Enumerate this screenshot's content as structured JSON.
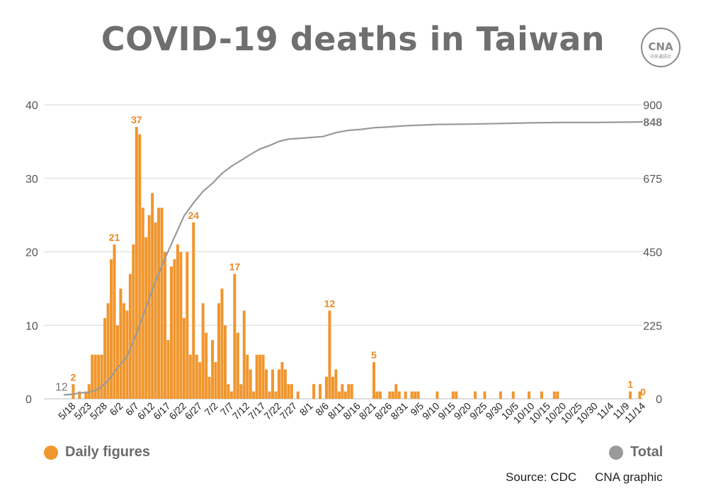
{
  "title": "COVID-19 deaths in Taiwan",
  "logo_text": "CNA",
  "logo_subtext": "中央通訊社",
  "legend": {
    "daily": "Daily figures",
    "total": "Total"
  },
  "source": "Source: CDC",
  "credit": "CNA graphic",
  "colors": {
    "daily": "#f0962e",
    "total": "#9a9a9a",
    "annotation": "#e8892a",
    "grid": "#d9d9d9",
    "axis_text": "#555555"
  },
  "chart_data": {
    "type": "bar+line",
    "left_axis": {
      "ticks": [
        0,
        10,
        20,
        30,
        40
      ],
      "ylim": [
        0,
        40
      ]
    },
    "right_axis": {
      "ticks": [
        0,
        225,
        450,
        675,
        900
      ],
      "ylim": [
        0,
        900
      ]
    },
    "x_tick_labels": [
      "5/18",
      "5/23",
      "5/28",
      "6/2",
      "6/7",
      "6/12",
      "6/17",
      "6/22",
      "6/27",
      "7/2",
      "7/7",
      "7/12",
      "7/17",
      "7/22",
      "7/27",
      "8/1",
      "8/6",
      "8/11",
      "8/16",
      "8/21",
      "8/26",
      "8/31",
      "9/5",
      "9/10",
      "9/15",
      "9/20",
      "9/25",
      "9/30",
      "10/5",
      "10/10",
      "10/15",
      "10/20",
      "10/25",
      "10/30",
      "11/4",
      "11/9",
      "11/14"
    ],
    "x_start": "5/15",
    "x_end": "11/14",
    "series": [
      {
        "name": "Daily figures",
        "kind": "bar",
        "axis": "left",
        "points": [
          [
            "5/15",
            0
          ],
          [
            "5/16",
            0
          ],
          [
            "5/17",
            0
          ],
          [
            "5/18",
            2
          ],
          [
            "5/19",
            0
          ],
          [
            "5/20",
            1
          ],
          [
            "5/21",
            0
          ],
          [
            "5/22",
            1
          ],
          [
            "5/23",
            2
          ],
          [
            "5/24",
            6
          ],
          [
            "5/25",
            6
          ],
          [
            "5/26",
            6
          ],
          [
            "5/27",
            6
          ],
          [
            "5/28",
            11
          ],
          [
            "5/29",
            13
          ],
          [
            "5/30",
            19
          ],
          [
            "5/31",
            21
          ],
          [
            "6/1",
            10
          ],
          [
            "6/2",
            15
          ],
          [
            "6/3",
            13
          ],
          [
            "6/4",
            12
          ],
          [
            "6/5",
            17
          ],
          [
            "6/6",
            21
          ],
          [
            "6/7",
            37
          ],
          [
            "6/8",
            36
          ],
          [
            "6/9",
            26
          ],
          [
            "6/10",
            22
          ],
          [
            "6/11",
            25
          ],
          [
            "6/12",
            28
          ],
          [
            "6/13",
            24
          ],
          [
            "6/14",
            26
          ],
          [
            "6/15",
            26
          ],
          [
            "6/16",
            20
          ],
          [
            "6/17",
            8
          ],
          [
            "6/18",
            18
          ],
          [
            "6/19",
            19
          ],
          [
            "6/20",
            21
          ],
          [
            "6/21",
            20
          ],
          [
            "6/22",
            11
          ],
          [
            "6/23",
            20
          ],
          [
            "6/24",
            6
          ],
          [
            "6/25",
            24
          ],
          [
            "6/26",
            6
          ],
          [
            "6/27",
            5
          ],
          [
            "6/28",
            13
          ],
          [
            "6/29",
            9
          ],
          [
            "6/30",
            3
          ],
          [
            "7/1",
            8
          ],
          [
            "7/2",
            5
          ],
          [
            "7/3",
            13
          ],
          [
            "7/4",
            15
          ],
          [
            "7/5",
            10
          ],
          [
            "7/6",
            2
          ],
          [
            "7/7",
            1
          ],
          [
            "7/8",
            17
          ],
          [
            "7/9",
            9
          ],
          [
            "7/10",
            2
          ],
          [
            "7/11",
            12
          ],
          [
            "7/12",
            6
          ],
          [
            "7/13",
            4
          ],
          [
            "7/14",
            1
          ],
          [
            "7/15",
            6
          ],
          [
            "7/16",
            6
          ],
          [
            "7/17",
            6
          ],
          [
            "7/18",
            4
          ],
          [
            "7/19",
            1
          ],
          [
            "7/20",
            4
          ],
          [
            "7/21",
            1
          ],
          [
            "7/22",
            4
          ],
          [
            "7/23",
            5
          ],
          [
            "7/24",
            4
          ],
          [
            "7/25",
            2
          ],
          [
            "7/26",
            2
          ],
          [
            "7/27",
            0
          ],
          [
            "7/28",
            1
          ],
          [
            "7/29",
            0
          ],
          [
            "7/30",
            0
          ],
          [
            "7/31",
            0
          ],
          [
            "8/1",
            0
          ],
          [
            "8/2",
            2
          ],
          [
            "8/3",
            0
          ],
          [
            "8/4",
            2
          ],
          [
            "8/5",
            0
          ],
          [
            "8/6",
            3
          ],
          [
            "8/7",
            12
          ],
          [
            "8/8",
            3
          ],
          [
            "8/9",
            4
          ],
          [
            "8/10",
            1
          ],
          [
            "8/11",
            2
          ],
          [
            "8/12",
            1
          ],
          [
            "8/13",
            2
          ],
          [
            "8/14",
            2
          ],
          [
            "8/15",
            0
          ],
          [
            "8/16",
            0
          ],
          [
            "8/17",
            0
          ],
          [
            "8/18",
            0
          ],
          [
            "8/19",
            0
          ],
          [
            "8/20",
            0
          ],
          [
            "8/21",
            5
          ],
          [
            "8/22",
            1
          ],
          [
            "8/23",
            1
          ],
          [
            "8/24",
            0
          ],
          [
            "8/25",
            0
          ],
          [
            "8/26",
            1
          ],
          [
            "8/27",
            1
          ],
          [
            "8/28",
            2
          ],
          [
            "8/29",
            1
          ],
          [
            "8/30",
            0
          ],
          [
            "8/31",
            1
          ],
          [
            "9/1",
            0
          ],
          [
            "9/2",
            1
          ],
          [
            "9/3",
            1
          ],
          [
            "9/4",
            1
          ],
          [
            "9/5",
            0
          ],
          [
            "9/6",
            0
          ],
          [
            "9/7",
            0
          ],
          [
            "9/8",
            0
          ],
          [
            "9/9",
            0
          ],
          [
            "9/10",
            1
          ],
          [
            "9/11",
            0
          ],
          [
            "9/12",
            0
          ],
          [
            "9/13",
            0
          ],
          [
            "9/14",
            0
          ],
          [
            "9/15",
            1
          ],
          [
            "9/16",
            1
          ],
          [
            "9/17",
            0
          ],
          [
            "9/18",
            0
          ],
          [
            "9/19",
            0
          ],
          [
            "9/20",
            0
          ],
          [
            "9/21",
            0
          ],
          [
            "9/22",
            1
          ],
          [
            "9/23",
            0
          ],
          [
            "9/24",
            0
          ],
          [
            "9/25",
            1
          ],
          [
            "9/26",
            0
          ],
          [
            "9/27",
            0
          ],
          [
            "9/28",
            0
          ],
          [
            "9/29",
            0
          ],
          [
            "9/30",
            1
          ],
          [
            "10/1",
            0
          ],
          [
            "10/2",
            0
          ],
          [
            "10/3",
            0
          ],
          [
            "10/4",
            1
          ],
          [
            "10/5",
            0
          ],
          [
            "10/6",
            0
          ],
          [
            "10/7",
            0
          ],
          [
            "10/8",
            0
          ],
          [
            "10/9",
            1
          ],
          [
            "10/10",
            0
          ],
          [
            "10/11",
            0
          ],
          [
            "10/12",
            0
          ],
          [
            "10/13",
            1
          ],
          [
            "10/14",
            0
          ],
          [
            "10/15",
            0
          ],
          [
            "10/16",
            0
          ],
          [
            "10/17",
            1
          ],
          [
            "10/18",
            1
          ],
          [
            "10/19",
            0
          ],
          [
            "10/20",
            0
          ],
          [
            "10/21",
            0
          ],
          [
            "10/22",
            0
          ],
          [
            "10/23",
            0
          ],
          [
            "10/24",
            0
          ],
          [
            "10/25",
            0
          ],
          [
            "10/26",
            0
          ],
          [
            "10/27",
            0
          ],
          [
            "10/28",
            0
          ],
          [
            "10/29",
            0
          ],
          [
            "10/30",
            0
          ],
          [
            "10/31",
            0
          ],
          [
            "11/1",
            0
          ],
          [
            "11/2",
            0
          ],
          [
            "11/3",
            0
          ],
          [
            "11/4",
            0
          ],
          [
            "11/5",
            0
          ],
          [
            "11/6",
            0
          ],
          [
            "11/7",
            0
          ],
          [
            "11/8",
            0
          ],
          [
            "11/9",
            0
          ],
          [
            "11/10",
            1
          ],
          [
            "11/11",
            0
          ],
          [
            "11/12",
            0
          ],
          [
            "11/13",
            1
          ],
          [
            "11/14",
            0
          ]
        ]
      },
      {
        "name": "Total",
        "kind": "line",
        "axis": "right",
        "points": [
          [
            "5/15",
            12
          ],
          [
            "5/18",
            14
          ],
          [
            "5/20",
            18
          ],
          [
            "5/23",
            20
          ],
          [
            "5/26",
            30
          ],
          [
            "5/29",
            55
          ],
          [
            "6/1",
            95
          ],
          [
            "6/4",
            130
          ],
          [
            "6/7",
            200
          ],
          [
            "6/10",
            280
          ],
          [
            "6/13",
            360
          ],
          [
            "6/16",
            430
          ],
          [
            "6/19",
            495
          ],
          [
            "6/22",
            560
          ],
          [
            "6/25",
            600
          ],
          [
            "6/28",
            635
          ],
          [
            "7/1",
            660
          ],
          [
            "7/4",
            690
          ],
          [
            "7/7",
            712
          ],
          [
            "7/10",
            730
          ],
          [
            "7/13",
            748
          ],
          [
            "7/16",
            765
          ],
          [
            "7/19",
            775
          ],
          [
            "7/22",
            788
          ],
          [
            "7/25",
            795
          ],
          [
            "7/28",
            797
          ],
          [
            "8/1",
            800
          ],
          [
            "8/5",
            803
          ],
          [
            "8/9",
            815
          ],
          [
            "8/13",
            822
          ],
          [
            "8/17",
            825
          ],
          [
            "8/21",
            830
          ],
          [
            "8/25",
            832
          ],
          [
            "8/31",
            836
          ],
          [
            "9/10",
            840
          ],
          [
            "9/20",
            841
          ],
          [
            "9/30",
            843
          ],
          [
            "10/10",
            845
          ],
          [
            "10/20",
            846
          ],
          [
            "10/30",
            846
          ],
          [
            "11/9",
            847
          ],
          [
            "11/14",
            848
          ]
        ]
      }
    ],
    "annotations": [
      {
        "date": "5/18",
        "value": 2,
        "label": "2"
      },
      {
        "date": "5/31",
        "value": 21,
        "label": "21"
      },
      {
        "date": "6/7",
        "value": 37,
        "label": "37"
      },
      {
        "date": "6/25",
        "value": 24,
        "label": "24"
      },
      {
        "date": "7/8",
        "value": 17,
        "label": "17"
      },
      {
        "date": "8/7",
        "value": 12,
        "label": "12"
      },
      {
        "date": "8/21",
        "value": 5,
        "label": "5"
      },
      {
        "date": "11/10",
        "value": 1,
        "label": "1"
      },
      {
        "date": "11/14",
        "value": 0,
        "label": "0"
      }
    ],
    "total_start_label": "12",
    "total_end_label": "848"
  }
}
